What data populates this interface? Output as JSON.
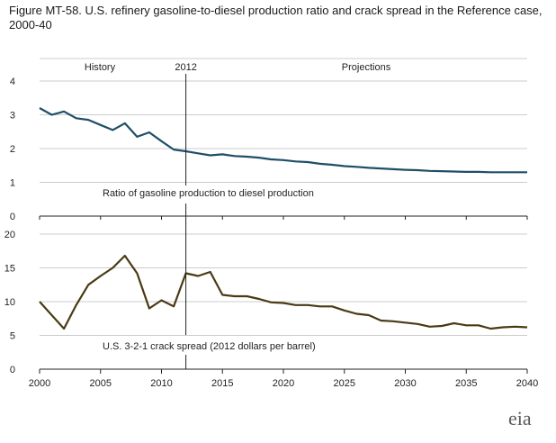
{
  "title": "Figure MT-58. U.S. refinery gasoline-to-diesel production ratio and crack spread in the Reference case, 2000-40",
  "logo_text": "eia",
  "colors": {
    "ratio": "#1f4e67",
    "crack": "#4a3a14",
    "axis": "#222222",
    "grid": "#cccccc"
  },
  "chart_data": [
    {
      "type": "line",
      "title": "",
      "header_labels": {
        "history": "History",
        "divider": "2012",
        "projections": "Projections"
      },
      "series_label": "Ratio of gasoline production to diesel production",
      "ylim": [
        0,
        4
      ],
      "yticks": [
        0,
        1,
        2,
        3,
        4
      ],
      "x": [
        2000,
        2001,
        2002,
        2003,
        2004,
        2005,
        2006,
        2007,
        2008,
        2009,
        2010,
        2011,
        2012,
        2013,
        2014,
        2015,
        2016,
        2017,
        2018,
        2019,
        2020,
        2021,
        2022,
        2023,
        2024,
        2025,
        2026,
        2027,
        2028,
        2029,
        2030,
        2031,
        2032,
        2033,
        2034,
        2035,
        2036,
        2037,
        2038,
        2039,
        2040
      ],
      "values": [
        3.2,
        3.0,
        3.1,
        2.9,
        2.85,
        2.7,
        2.55,
        2.75,
        2.35,
        2.48,
        2.22,
        1.97,
        1.92,
        1.86,
        1.8,
        1.83,
        1.78,
        1.76,
        1.73,
        1.68,
        1.66,
        1.62,
        1.6,
        1.55,
        1.52,
        1.48,
        1.46,
        1.43,
        1.41,
        1.39,
        1.37,
        1.36,
        1.34,
        1.33,
        1.32,
        1.31,
        1.31,
        1.3,
        1.3,
        1.3,
        1.3
      ]
    },
    {
      "type": "line",
      "title": "",
      "series_label": "U.S. 3-2-1 crack spread (2012 dollars per barrel)",
      "ylim": [
        0,
        20
      ],
      "yticks": [
        0,
        5,
        10,
        15,
        20
      ],
      "xticks": [
        2000,
        2005,
        2010,
        2015,
        2020,
        2025,
        2030,
        2035,
        2040
      ],
      "x": [
        2000,
        2001,
        2002,
        2003,
        2004,
        2005,
        2006,
        2007,
        2008,
        2009,
        2010,
        2011,
        2012,
        2013,
        2014,
        2015,
        2016,
        2017,
        2018,
        2019,
        2020,
        2021,
        2022,
        2023,
        2024,
        2025,
        2026,
        2027,
        2028,
        2029,
        2030,
        2031,
        2032,
        2033,
        2034,
        2035,
        2036,
        2037,
        2038,
        2039,
        2040
      ],
      "values": [
        10.0,
        8.0,
        6.0,
        9.5,
        12.5,
        13.8,
        15.0,
        16.8,
        14.2,
        9.0,
        10.2,
        9.3,
        14.2,
        13.8,
        14.4,
        11.0,
        10.8,
        10.8,
        10.4,
        9.9,
        9.8,
        9.5,
        9.5,
        9.3,
        9.3,
        8.7,
        8.2,
        8.0,
        7.2,
        7.1,
        6.9,
        6.7,
        6.3,
        6.4,
        6.8,
        6.5,
        6.5,
        6.0,
        6.2,
        6.3,
        6.2
      ]
    }
  ]
}
